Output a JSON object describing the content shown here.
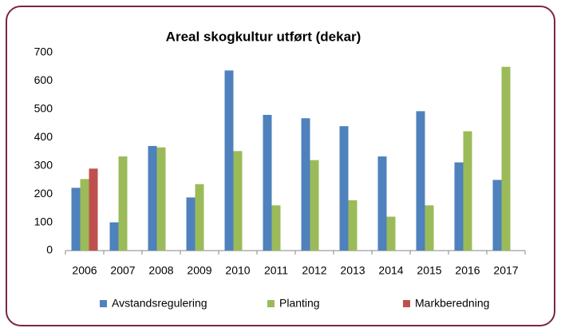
{
  "chart_data": {
    "type": "bar",
    "title": "Areal skogkultur utført (dekar)",
    "categories": [
      "2006",
      "2007",
      "2008",
      "2009",
      "2010",
      "2011",
      "2012",
      "2013",
      "2014",
      "2015",
      "2016",
      "2017"
    ],
    "series": [
      {
        "name": "Avstandsregulering",
        "color": "#4f81bd",
        "values": [
          222,
          100,
          370,
          188,
          637,
          480,
          468,
          440,
          333,
          493,
          312,
          250
        ]
      },
      {
        "name": "Planting",
        "color": "#9bbb59",
        "values": [
          253,
          333,
          365,
          235,
          352,
          160,
          320,
          178,
          120,
          160,
          422,
          650
        ]
      },
      {
        "name": "Markberedning",
        "color": "#c0504d",
        "values": [
          290,
          null,
          null,
          null,
          null,
          null,
          null,
          null,
          null,
          null,
          null,
          null
        ]
      }
    ],
    "ylim": [
      0,
      700
    ],
    "yticks": [
      0,
      100,
      200,
      300,
      400,
      500,
      600,
      700
    ],
    "grid": false,
    "legend": "bottom"
  }
}
